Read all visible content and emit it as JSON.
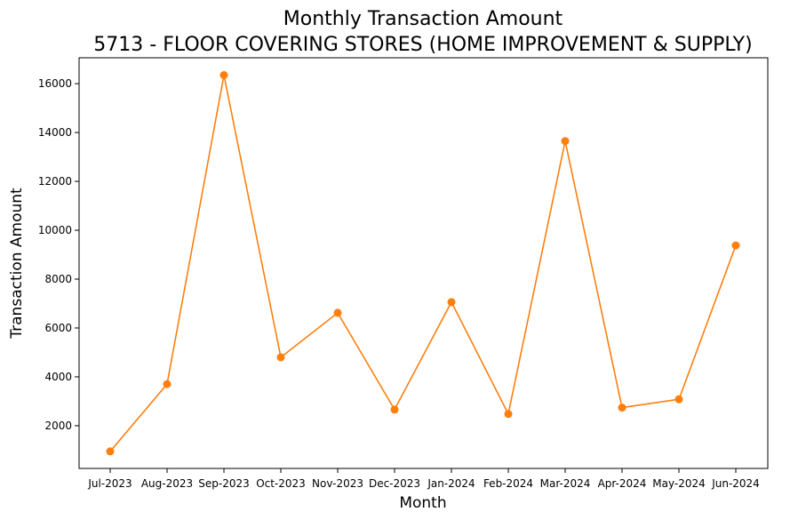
{
  "chart_data": {
    "type": "line",
    "title_line1": "Monthly Transaction Amount",
    "title_line2": "5713 - FLOOR COVERING STORES (HOME IMPROVEMENT & SUPPLY)",
    "xlabel": "Month",
    "ylabel": "Transaction Amount",
    "categories": [
      "Jul-2023",
      "Aug-2023",
      "Sep-2023",
      "Oct-2023",
      "Nov-2023",
      "Dec-2023",
      "Jan-2024",
      "Feb-2024",
      "Mar-2024",
      "Apr-2024",
      "May-2024",
      "Jun-2024"
    ],
    "values": [
      950,
      3700,
      16350,
      4800,
      6620,
      2660,
      7060,
      2480,
      13650,
      2740,
      3080,
      9380
    ],
    "y_ticks": [
      2000,
      4000,
      6000,
      8000,
      10000,
      12000,
      14000,
      16000
    ],
    "ylim": [
      250,
      17060
    ],
    "line_color": "#ff7f0e",
    "grid": false,
    "legend": "none"
  }
}
